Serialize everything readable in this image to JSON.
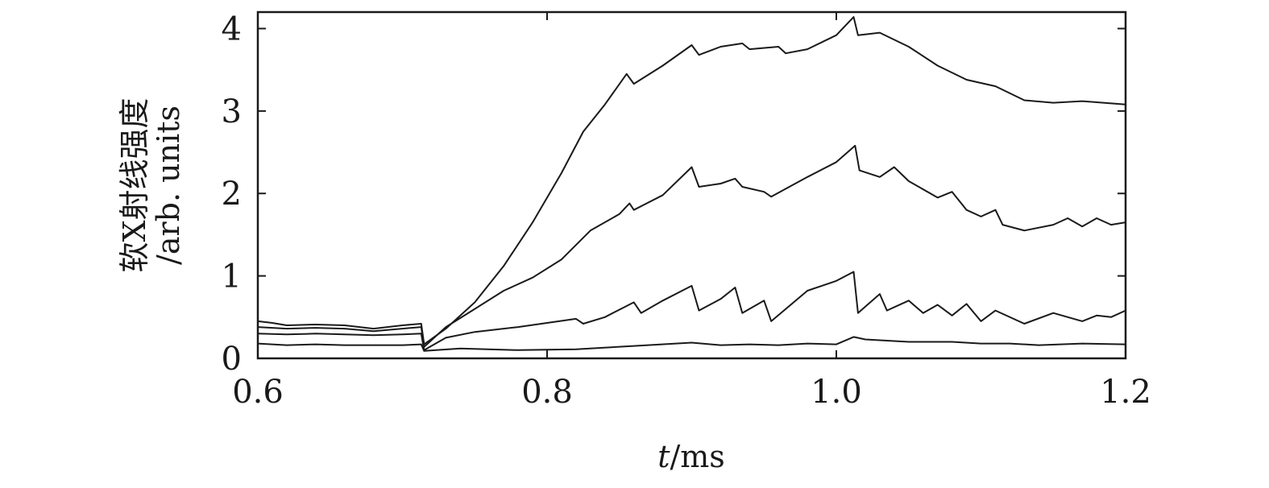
{
  "chart_data": {
    "type": "line",
    "xlabel_var": "t",
    "xlabel_unit": "/ms",
    "ylabel_line1": "软X射线强度",
    "ylabel_line2": "/arb. units",
    "xlim": [
      0.6,
      1.2
    ],
    "ylim": [
      0,
      4.2
    ],
    "x_ticks": [
      0.6,
      0.8,
      1.0,
      1.2
    ],
    "x_tick_labels": [
      "0.6",
      "0.8",
      "1.0",
      "1.2"
    ],
    "y_ticks": [
      0,
      1,
      2,
      3,
      4
    ],
    "y_tick_labels": [
      "0",
      "1",
      "2",
      "3",
      "4"
    ],
    "grid": false,
    "series": [
      {
        "points": [
          [
            0.6,
            0.45
          ],
          [
            0.61,
            0.43
          ],
          [
            0.62,
            0.4
          ],
          [
            0.64,
            0.41
          ],
          [
            0.66,
            0.4
          ],
          [
            0.68,
            0.36
          ],
          [
            0.7,
            0.4
          ],
          [
            0.713,
            0.42
          ],
          [
            0.715,
            0.17
          ],
          [
            0.73,
            0.36
          ],
          [
            0.75,
            0.68
          ],
          [
            0.77,
            1.12
          ],
          [
            0.79,
            1.65
          ],
          [
            0.81,
            2.25
          ],
          [
            0.825,
            2.75
          ],
          [
            0.84,
            3.08
          ],
          [
            0.855,
            3.45
          ],
          [
            0.86,
            3.33
          ],
          [
            0.88,
            3.55
          ],
          [
            0.9,
            3.8
          ],
          [
            0.905,
            3.68
          ],
          [
            0.92,
            3.78
          ],
          [
            0.935,
            3.82
          ],
          [
            0.94,
            3.75
          ],
          [
            0.96,
            3.78
          ],
          [
            0.965,
            3.7
          ],
          [
            0.98,
            3.75
          ],
          [
            1.0,
            3.92
          ],
          [
            1.012,
            4.14
          ],
          [
            1.015,
            3.92
          ],
          [
            1.03,
            3.95
          ],
          [
            1.05,
            3.78
          ],
          [
            1.07,
            3.55
          ],
          [
            1.09,
            3.38
          ],
          [
            1.11,
            3.3
          ],
          [
            1.13,
            3.13
          ],
          [
            1.15,
            3.1
          ],
          [
            1.17,
            3.12
          ],
          [
            1.2,
            3.08
          ]
        ]
      },
      {
        "points": [
          [
            0.6,
            0.38
          ],
          [
            0.62,
            0.36
          ],
          [
            0.64,
            0.37
          ],
          [
            0.66,
            0.36
          ],
          [
            0.68,
            0.33
          ],
          [
            0.7,
            0.36
          ],
          [
            0.713,
            0.38
          ],
          [
            0.715,
            0.14
          ],
          [
            0.73,
            0.38
          ],
          [
            0.75,
            0.6
          ],
          [
            0.77,
            0.82
          ],
          [
            0.79,
            0.98
          ],
          [
            0.81,
            1.2
          ],
          [
            0.83,
            1.55
          ],
          [
            0.85,
            1.75
          ],
          [
            0.857,
            1.88
          ],
          [
            0.86,
            1.8
          ],
          [
            0.88,
            1.98
          ],
          [
            0.9,
            2.32
          ],
          [
            0.905,
            2.08
          ],
          [
            0.92,
            2.12
          ],
          [
            0.93,
            2.18
          ],
          [
            0.935,
            2.08
          ],
          [
            0.95,
            2.02
          ],
          [
            0.955,
            1.96
          ],
          [
            0.98,
            2.2
          ],
          [
            1.0,
            2.38
          ],
          [
            1.013,
            2.58
          ],
          [
            1.016,
            2.28
          ],
          [
            1.03,
            2.2
          ],
          [
            1.04,
            2.32
          ],
          [
            1.05,
            2.15
          ],
          [
            1.07,
            1.95
          ],
          [
            1.08,
            2.02
          ],
          [
            1.09,
            1.8
          ],
          [
            1.1,
            1.72
          ],
          [
            1.11,
            1.8
          ],
          [
            1.115,
            1.62
          ],
          [
            1.13,
            1.55
          ],
          [
            1.15,
            1.62
          ],
          [
            1.16,
            1.7
          ],
          [
            1.17,
            1.6
          ],
          [
            1.18,
            1.7
          ],
          [
            1.19,
            1.62
          ],
          [
            1.2,
            1.65
          ]
        ]
      },
      {
        "points": [
          [
            0.6,
            0.3
          ],
          [
            0.62,
            0.29
          ],
          [
            0.64,
            0.3
          ],
          [
            0.66,
            0.29
          ],
          [
            0.68,
            0.28
          ],
          [
            0.7,
            0.29
          ],
          [
            0.713,
            0.3
          ],
          [
            0.715,
            0.1
          ],
          [
            0.73,
            0.25
          ],
          [
            0.75,
            0.32
          ],
          [
            0.78,
            0.38
          ],
          [
            0.8,
            0.43
          ],
          [
            0.82,
            0.48
          ],
          [
            0.825,
            0.42
          ],
          [
            0.84,
            0.5
          ],
          [
            0.86,
            0.68
          ],
          [
            0.865,
            0.55
          ],
          [
            0.88,
            0.7
          ],
          [
            0.9,
            0.88
          ],
          [
            0.905,
            0.58
          ],
          [
            0.92,
            0.72
          ],
          [
            0.93,
            0.86
          ],
          [
            0.935,
            0.55
          ],
          [
            0.95,
            0.7
          ],
          [
            0.955,
            0.45
          ],
          [
            0.98,
            0.82
          ],
          [
            1.0,
            0.94
          ],
          [
            1.012,
            1.05
          ],
          [
            1.015,
            0.55
          ],
          [
            1.03,
            0.78
          ],
          [
            1.035,
            0.58
          ],
          [
            1.05,
            0.7
          ],
          [
            1.06,
            0.55
          ],
          [
            1.07,
            0.65
          ],
          [
            1.08,
            0.52
          ],
          [
            1.09,
            0.66
          ],
          [
            1.1,
            0.45
          ],
          [
            1.11,
            0.58
          ],
          [
            1.13,
            0.42
          ],
          [
            1.15,
            0.55
          ],
          [
            1.17,
            0.45
          ],
          [
            1.18,
            0.52
          ],
          [
            1.19,
            0.5
          ],
          [
            1.2,
            0.58
          ]
        ]
      },
      {
        "points": [
          [
            0.6,
            0.18
          ],
          [
            0.62,
            0.16
          ],
          [
            0.64,
            0.17
          ],
          [
            0.66,
            0.16
          ],
          [
            0.68,
            0.16
          ],
          [
            0.7,
            0.16
          ],
          [
            0.713,
            0.17
          ],
          [
            0.715,
            0.09
          ],
          [
            0.74,
            0.12
          ],
          [
            0.78,
            0.1
          ],
          [
            0.82,
            0.11
          ],
          [
            0.86,
            0.15
          ],
          [
            0.9,
            0.19
          ],
          [
            0.92,
            0.16
          ],
          [
            0.94,
            0.17
          ],
          [
            0.96,
            0.16
          ],
          [
            0.98,
            0.18
          ],
          [
            1.0,
            0.17
          ],
          [
            1.012,
            0.26
          ],
          [
            1.02,
            0.23
          ],
          [
            1.05,
            0.2
          ],
          [
            1.08,
            0.2
          ],
          [
            1.1,
            0.18
          ],
          [
            1.12,
            0.18
          ],
          [
            1.14,
            0.16
          ],
          [
            1.17,
            0.18
          ],
          [
            1.2,
            0.17
          ]
        ]
      }
    ]
  }
}
